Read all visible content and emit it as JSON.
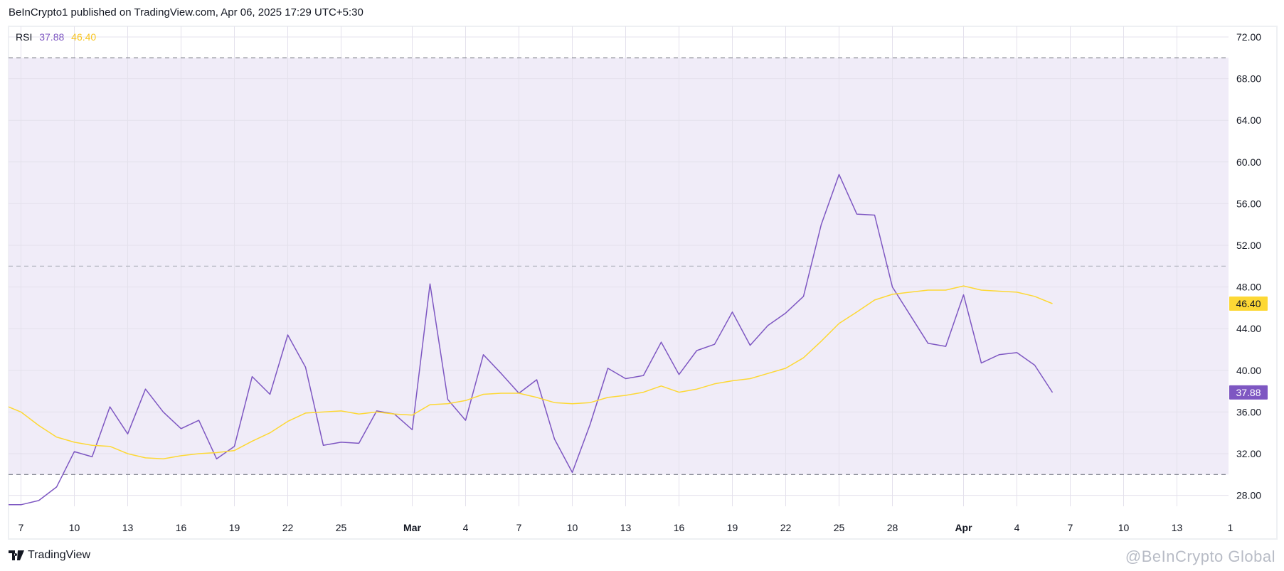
{
  "header": {
    "published": "BeInCrypto1 published on TradingView.com, Apr 06, 2025 17:29 UTC+5:30"
  },
  "legend": {
    "indicator": "RSI",
    "rsi_value": "37.88",
    "ma_value": "46.40"
  },
  "footer": {
    "logo_text": "TradingView",
    "watermark": "@BeInCrypto Global"
  },
  "colors": {
    "rsi": "#7e57c2",
    "ma": "#fdd835",
    "band": "#f0ecf8",
    "grid": "#e4e1ec"
  },
  "chart_data": {
    "type": "line",
    "title": "",
    "xlabel": "",
    "ylabel": "",
    "ylim": [
      27,
      73
    ],
    "y_ticks": [
      "28.00",
      "32.00",
      "36.00",
      "40.00",
      "44.00",
      "48.00",
      "52.00",
      "56.00",
      "60.00",
      "64.00",
      "68.00",
      "72.00"
    ],
    "x_ticks": [
      {
        "date": "2025-02-07",
        "label": "7"
      },
      {
        "date": "2025-02-10",
        "label": "10"
      },
      {
        "date": "2025-02-13",
        "label": "13"
      },
      {
        "date": "2025-02-16",
        "label": "16"
      },
      {
        "date": "2025-02-19",
        "label": "19"
      },
      {
        "date": "2025-02-22",
        "label": "22"
      },
      {
        "date": "2025-02-25",
        "label": "25"
      },
      {
        "date": "2025-03-01",
        "label": "Mar",
        "bold": true
      },
      {
        "date": "2025-03-04",
        "label": "4"
      },
      {
        "date": "2025-03-07",
        "label": "7"
      },
      {
        "date": "2025-03-10",
        "label": "10"
      },
      {
        "date": "2025-03-13",
        "label": "13"
      },
      {
        "date": "2025-03-16",
        "label": "16"
      },
      {
        "date": "2025-03-19",
        "label": "19"
      },
      {
        "date": "2025-03-22",
        "label": "22"
      },
      {
        "date": "2025-03-25",
        "label": "25"
      },
      {
        "date": "2025-03-28",
        "label": "28"
      },
      {
        "date": "2025-04-01",
        "label": "Apr",
        "bold": true
      },
      {
        "date": "2025-04-04",
        "label": "4"
      },
      {
        "date": "2025-04-07",
        "label": "7"
      },
      {
        "date": "2025-04-10",
        "label": "10"
      },
      {
        "date": "2025-04-13",
        "label": "13"
      },
      {
        "date": "2025-04-16",
        "label": "1"
      }
    ],
    "bands": {
      "upper": 70,
      "middle": 50,
      "lower": 30
    },
    "grid": true,
    "x": [
      "2025-02-06",
      "2025-02-07",
      "2025-02-08",
      "2025-02-09",
      "2025-02-10",
      "2025-02-11",
      "2025-02-12",
      "2025-02-13",
      "2025-02-14",
      "2025-02-15",
      "2025-02-16",
      "2025-02-17",
      "2025-02-18",
      "2025-02-19",
      "2025-02-20",
      "2025-02-21",
      "2025-02-22",
      "2025-02-23",
      "2025-02-24",
      "2025-02-25",
      "2025-02-26",
      "2025-02-27",
      "2025-02-28",
      "2025-03-01",
      "2025-03-02",
      "2025-03-03",
      "2025-03-04",
      "2025-03-05",
      "2025-03-06",
      "2025-03-07",
      "2025-03-08",
      "2025-03-09",
      "2025-03-10",
      "2025-03-11",
      "2025-03-12",
      "2025-03-13",
      "2025-03-14",
      "2025-03-15",
      "2025-03-16",
      "2025-03-17",
      "2025-03-18",
      "2025-03-19",
      "2025-03-20",
      "2025-03-21",
      "2025-03-22",
      "2025-03-23",
      "2025-03-24",
      "2025-03-25",
      "2025-03-26",
      "2025-03-27",
      "2025-03-28",
      "2025-03-29",
      "2025-03-30",
      "2025-03-31",
      "2025-04-01",
      "2025-04-02",
      "2025-04-03",
      "2025-04-04",
      "2025-04-05",
      "2025-04-06"
    ],
    "series": [
      {
        "name": "RSI",
        "values": [
          27.1,
          27.1,
          27.5,
          28.8,
          32.2,
          31.7,
          36.5,
          33.9,
          38.2,
          36.0,
          34.4,
          35.2,
          31.5,
          32.7,
          39.4,
          37.7,
          43.4,
          40.3,
          32.8,
          33.1,
          33.0,
          36.1,
          35.8,
          34.3,
          48.3,
          37.2,
          35.2,
          41.5,
          39.7,
          37.8,
          39.1,
          33.4,
          30.2,
          34.8,
          40.2,
          39.2,
          39.5,
          42.7,
          39.6,
          41.9,
          42.5,
          45.6,
          42.4,
          44.3,
          45.5,
          47.1,
          54.0,
          58.8,
          55.0,
          54.9,
          48.0,
          45.3,
          42.6,
          42.3,
          47.25,
          40.7,
          41.5,
          41.7,
          40.5,
          37.88
        ]
      },
      {
        "values": [
          36.7,
          36.0,
          34.7,
          33.6,
          33.1,
          32.8,
          32.7,
          32.0,
          31.6,
          31.5,
          31.8,
          32.0,
          32.1,
          32.3,
          33.2,
          34.0,
          35.1,
          35.9,
          36.0,
          36.1,
          35.8,
          36.0,
          35.8,
          35.7,
          36.7,
          36.8,
          37.1,
          37.7,
          37.8,
          37.8,
          37.4,
          36.9,
          36.8,
          36.9,
          37.4,
          37.6,
          37.9,
          38.5,
          37.9,
          38.2,
          38.7,
          39.0,
          39.2,
          39.7,
          40.2,
          41.2,
          42.8,
          44.5,
          45.6,
          46.75,
          47.3,
          47.5,
          47.7,
          47.7,
          48.1,
          47.7,
          47.6,
          47.5,
          47.1,
          46.4
        ]
      }
    ],
    "last_value_labels": [
      "46.40",
      "37.88"
    ]
  }
}
